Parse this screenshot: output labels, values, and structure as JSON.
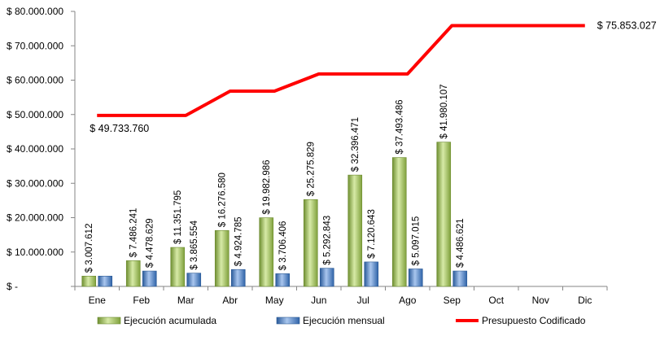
{
  "chart_data": {
    "type": "bar",
    "categories": [
      "Ene",
      "Feb",
      "Mar",
      "Abr",
      "May",
      "Jun",
      "Jul",
      "Ago",
      "Sep",
      "Oct",
      "Nov",
      "Dic"
    ],
    "ylim": [
      0,
      80000000
    ],
    "yticks": [
      0,
      10000000,
      20000000,
      30000000,
      40000000,
      50000000,
      60000000,
      70000000,
      80000000
    ],
    "ytick_labels": [
      "$ -",
      "$ 10.000.000",
      "$ 20.000.000",
      "$ 30.000.000",
      "$ 40.000.000",
      "$ 50.000.000",
      "$ 60.000.000",
      "$ 70.000.000",
      "$ 80.000.000"
    ],
    "grid": false,
    "legend_position": "bottom",
    "series": [
      {
        "name": "Ejecución acumulada",
        "kind": "bar",
        "color": "#9bbb59",
        "values": [
          3007612,
          7486241,
          11351795,
          16276580,
          19982986,
          25275829,
          32396471,
          37493486,
          41980107,
          null,
          null,
          null
        ],
        "labels": [
          "$ 3.007.612",
          "$ 7.486.241",
          "$ 11.351.795",
          "$ 16.276.580",
          "$ 19.982.986",
          "$ 25.275.829",
          "$ 32.396.471",
          "$ 37.493.486",
          "$ 41.980.107",
          null,
          null,
          null
        ]
      },
      {
        "name": "Ejecución mensual",
        "kind": "bar",
        "color": "#4f81bd",
        "values": [
          3007612,
          4478629,
          3865554,
          4924785,
          3706406,
          5292843,
          7120643,
          5097015,
          4486621,
          null,
          null,
          null
        ],
        "labels": [
          null,
          "$ 4.478.629",
          "$ 3.865.554",
          "$ 4.924.785",
          "$ 3.706.406",
          "$ 5.292.843",
          "$ 7.120.643",
          "$ 5.097.015",
          "$ 4.486.621",
          null,
          null,
          null
        ]
      },
      {
        "name": "Presupuesto Codificado",
        "kind": "line",
        "color": "#ff0000",
        "values": [
          49733760,
          49733760,
          49733760,
          56800000,
          56800000,
          61800000,
          61800000,
          61800000,
          75853027,
          75853027,
          75853027,
          75853027
        ],
        "labels": [
          "$ 49.733.760",
          null,
          null,
          null,
          null,
          null,
          null,
          null,
          null,
          null,
          null,
          "$ 75.853.027"
        ]
      }
    ]
  }
}
